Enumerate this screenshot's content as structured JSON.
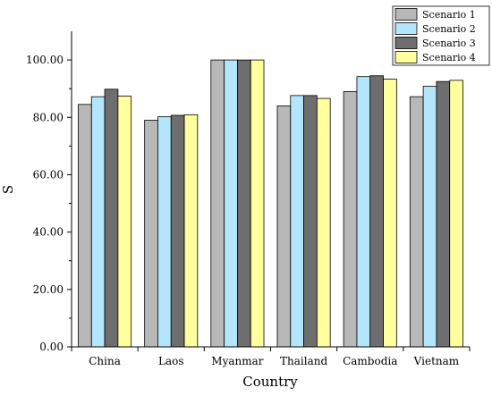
{
  "chart_data": {
    "type": "bar",
    "title": "",
    "xlabel": "Country",
    "ylabel": "S",
    "ylim": [
      0,
      110
    ],
    "yticks": [
      "0.00",
      "20.00",
      "40.00",
      "60.00",
      "80.00",
      "100.00"
    ],
    "categories": [
      "China",
      "Laos",
      "Myanmar",
      "Thailand",
      "Cambodia",
      "Vietnam"
    ],
    "series": [
      {
        "name": "Scenario 1",
        "color": "#b8b8b8",
        "values": [
          84.5,
          79.0,
          100.0,
          84.0,
          89.0,
          87.2
        ]
      },
      {
        "name": "Scenario 2",
        "color": "#b4e6fb",
        "values": [
          87.2,
          80.2,
          100.0,
          87.6,
          94.2,
          90.8
        ]
      },
      {
        "name": "Scenario 3",
        "color": "#6e6e6e",
        "values": [
          89.8,
          80.7,
          100.0,
          87.6,
          94.5,
          92.5
        ]
      },
      {
        "name": "Scenario 4",
        "color": "#ffff9e",
        "values": [
          87.4,
          80.9,
          100.0,
          86.6,
          93.3,
          92.9
        ]
      }
    ],
    "grid": false,
    "legend_position": "top-right"
  }
}
